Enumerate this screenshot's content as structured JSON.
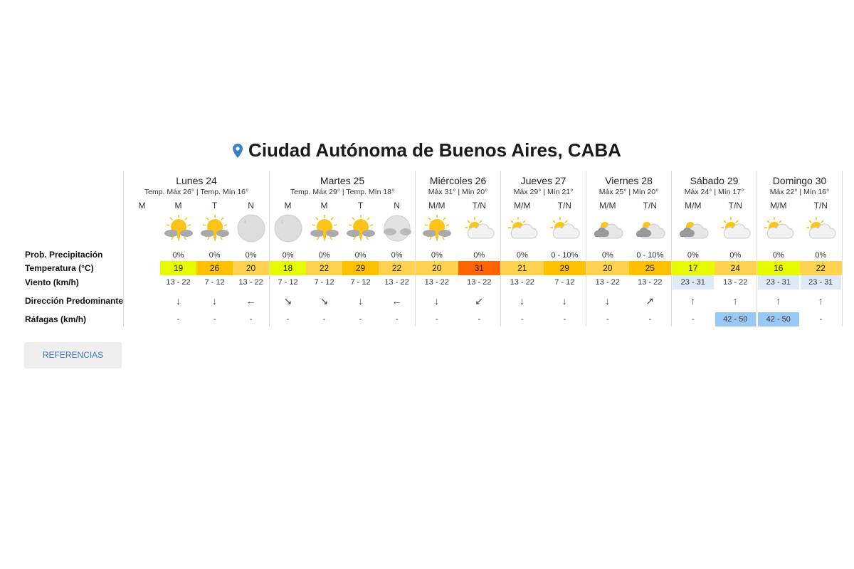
{
  "location": {
    "title": "Ciudad Autónoma de Buenos Aires, CABA",
    "icon": "map-pin-icon",
    "icon_color": "#3b82c4"
  },
  "row_labels": {
    "precip": "Prob. Precipitación",
    "temp": "Temperatura (°C)",
    "wind": "Viento (km/h)",
    "dir": "Dirección Predominante",
    "gusts": "Ráfagas (km/h)"
  },
  "colors": {
    "lime": "#e6fa00",
    "light-orange": "#ffd24f",
    "orange": "#ffc000",
    "red-orange": "#ff6400",
    "wind-highlight": "#deeaf6",
    "gust-highlight": "#99c8f5"
  },
  "days": [
    {
      "name": "Lunes 24",
      "summary": "Temp. Máx 26° | Temp. Mín 16°",
      "periods": [
        {
          "label": "M",
          "icon": "",
          "precip": "",
          "temp": "",
          "temp_color": "",
          "wind": "",
          "dir": "",
          "gusts": ""
        },
        {
          "label": "M",
          "icon": "sun-cloud",
          "precip": "0%",
          "temp": "19",
          "temp_color": "lime",
          "wind": "13 - 22",
          "dir": "↓",
          "gusts": "-"
        },
        {
          "label": "T",
          "icon": "sun-cloud",
          "precip": "0%",
          "temp": "26",
          "temp_color": "orange",
          "wind": "7 - 12",
          "dir": "↓",
          "gusts": "-"
        },
        {
          "label": "N",
          "icon": "moon",
          "precip": "0%",
          "temp": "20",
          "temp_color": "light-orange",
          "wind": "13 - 22",
          "dir": "←",
          "gusts": "-"
        }
      ]
    },
    {
      "name": "Martes 25",
      "summary": "Temp. Máx 29° | Temp. Mín 18°",
      "periods": [
        {
          "label": "M",
          "icon": "moon",
          "precip": "0%",
          "temp": "18",
          "temp_color": "lime",
          "wind": "7 - 12",
          "dir": "↘",
          "gusts": "-"
        },
        {
          "label": "M",
          "icon": "sun-cloud",
          "precip": "0%",
          "temp": "22",
          "temp_color": "light-orange",
          "wind": "7 - 12",
          "dir": "↘",
          "gusts": "-"
        },
        {
          "label": "T",
          "icon": "sun-cloud",
          "precip": "0%",
          "temp": "29",
          "temp_color": "orange",
          "wind": "7 - 12",
          "dir": "↓",
          "gusts": "-"
        },
        {
          "label": "N",
          "icon": "moon-cloud",
          "precip": "0%",
          "temp": "22",
          "temp_color": "light-orange",
          "wind": "13 - 22",
          "dir": "←",
          "gusts": "-"
        }
      ]
    },
    {
      "name": "Miércoles 26",
      "summary": "Máx 31° | Mín 20°",
      "periods": [
        {
          "label": "M/M",
          "icon": "sun-cloud",
          "precip": "0%",
          "temp": "20",
          "temp_color": "light-orange",
          "wind": "13 - 22",
          "dir": "↓",
          "gusts": "-"
        },
        {
          "label": "T/N",
          "icon": "partly-sunny",
          "precip": "0%",
          "temp": "31",
          "temp_color": "red-orange",
          "wind": "13 - 22",
          "dir": "↙",
          "gusts": "-"
        }
      ]
    },
    {
      "name": "Jueves 27",
      "summary": "Máx 29° | Mín 21°",
      "periods": [
        {
          "label": "M/M",
          "icon": "partly-sunny",
          "precip": "0%",
          "temp": "21",
          "temp_color": "light-orange",
          "wind": "13 - 22",
          "dir": "↓",
          "gusts": "-"
        },
        {
          "label": "T/N",
          "icon": "partly-sunny",
          "precip": "0 - 10%",
          "temp": "29",
          "temp_color": "orange",
          "wind": "7 - 12",
          "dir": "↓",
          "gusts": "-"
        }
      ]
    },
    {
      "name": "Viernes 28",
      "summary": "Máx 25° | Mín 20°",
      "periods": [
        {
          "label": "M/M",
          "icon": "cloudy",
          "precip": "0%",
          "temp": "20",
          "temp_color": "light-orange",
          "wind": "13 - 22",
          "dir": "↓",
          "gusts": "-"
        },
        {
          "label": "T/N",
          "icon": "cloudy",
          "precip": "0 - 10%",
          "temp": "25",
          "temp_color": "orange",
          "wind": "13 - 22",
          "dir": "↗",
          "gusts": "-"
        }
      ]
    },
    {
      "name": "Sábado 29",
      "summary": "Máx 24° | Mín 17°",
      "periods": [
        {
          "label": "M/M",
          "icon": "cloudy",
          "precip": "0%",
          "temp": "17",
          "temp_color": "lime",
          "wind": "23 - 31",
          "wind_hl": true,
          "dir": "↑",
          "gusts": "-"
        },
        {
          "label": "T/N",
          "icon": "partly-sunny",
          "precip": "0%",
          "temp": "24",
          "temp_color": "light-orange",
          "wind": "13 - 22",
          "dir": "↑",
          "gusts": "42 - 50",
          "gusts_hl": true
        }
      ]
    },
    {
      "name": "Domingo 30",
      "summary": "Máx 22° | Mín 16°",
      "periods": [
        {
          "label": "M/M",
          "icon": "partly-sunny",
          "precip": "0%",
          "temp": "16",
          "temp_color": "lime",
          "wind": "23 - 31",
          "wind_hl": true,
          "dir": "↑",
          "gusts": "42 - 50",
          "gusts_hl": true
        },
        {
          "label": "T/N",
          "icon": "partly-sunny",
          "precip": "0%",
          "temp": "22",
          "temp_color": "light-orange",
          "wind": "23 - 31",
          "wind_hl": true,
          "dir": "↑",
          "gusts": "-"
        }
      ]
    }
  ],
  "references_button": "REFERENCIAS"
}
